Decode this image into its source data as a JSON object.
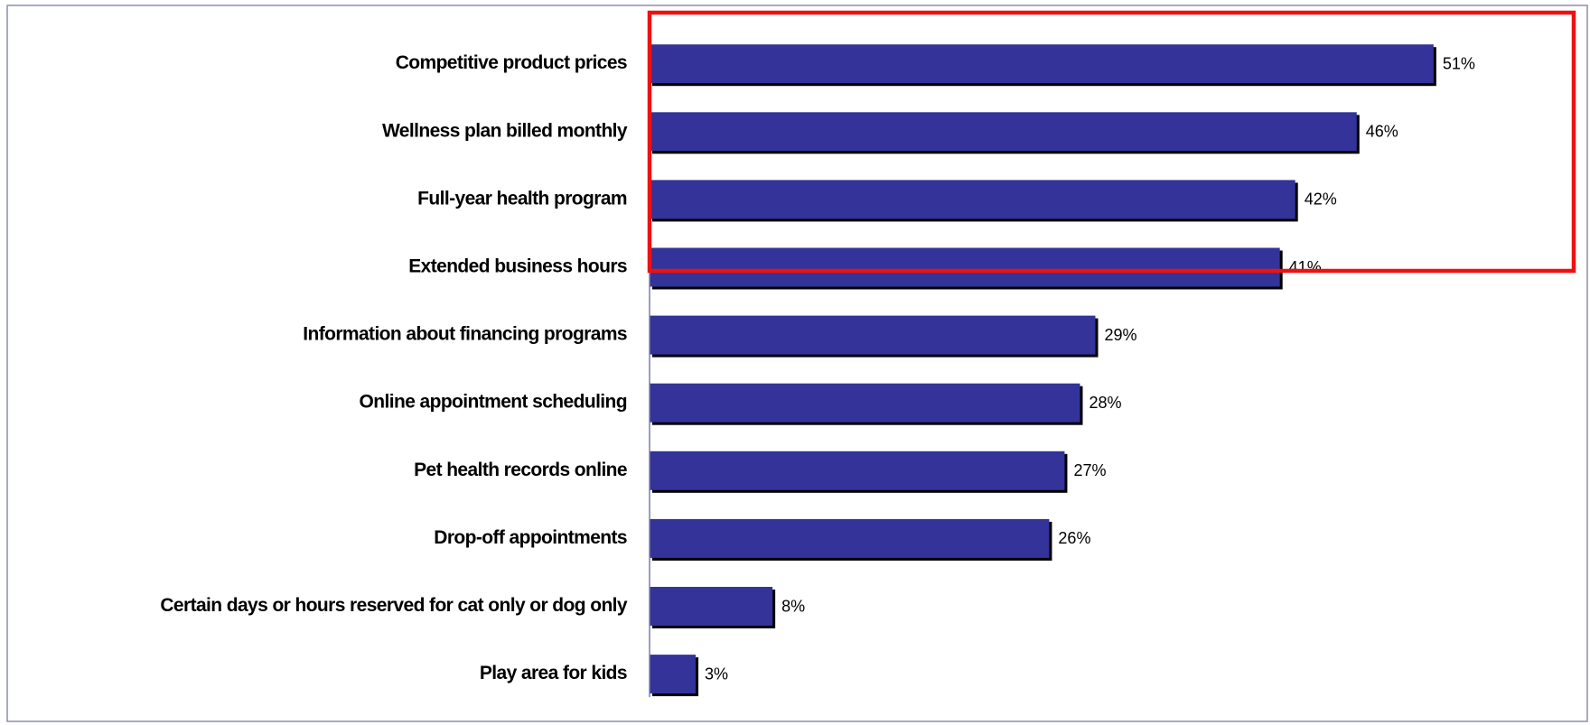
{
  "chart_data": {
    "type": "bar",
    "orientation": "horizontal",
    "categories": [
      "Competitive product prices",
      "Wellness plan billed monthly",
      "Full-year health program",
      "Extended business hours",
      "Information about financing programs",
      "Online appointment scheduling",
      "Pet health records online",
      "Drop-off appointments",
      "Certain days or hours reserved for cat only or dog only",
      "Play area for kids"
    ],
    "values": [
      51,
      46,
      42,
      41,
      29,
      28,
      27,
      26,
      8,
      3
    ],
    "value_labels": [
      "51%",
      "46%",
      "42%",
      "41%",
      "29%",
      "28%",
      "27%",
      "26%",
      "8%",
      "3%"
    ],
    "color": "#333399",
    "xlim": [
      0,
      60
    ]
  }
}
